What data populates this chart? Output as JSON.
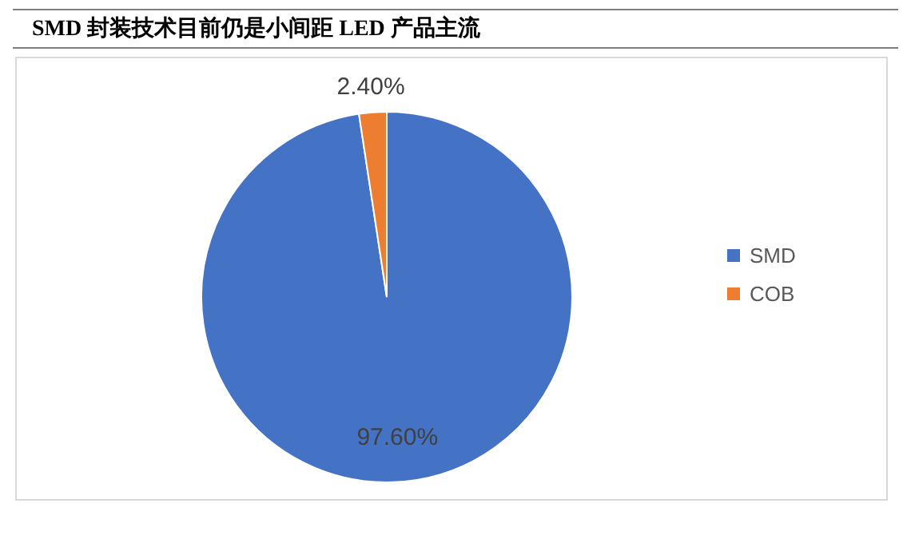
{
  "chart_data": {
    "type": "pie",
    "title": "SMD 封装技术目前仍是小间距 LED 产品主流",
    "categories": [
      "SMD",
      "COB"
    ],
    "values": [
      97.6,
      2.4
    ],
    "colors": [
      "#4472c4",
      "#ed7d31"
    ],
    "value_labels": [
      "97.60%",
      "2.40%"
    ],
    "legend": "right"
  }
}
